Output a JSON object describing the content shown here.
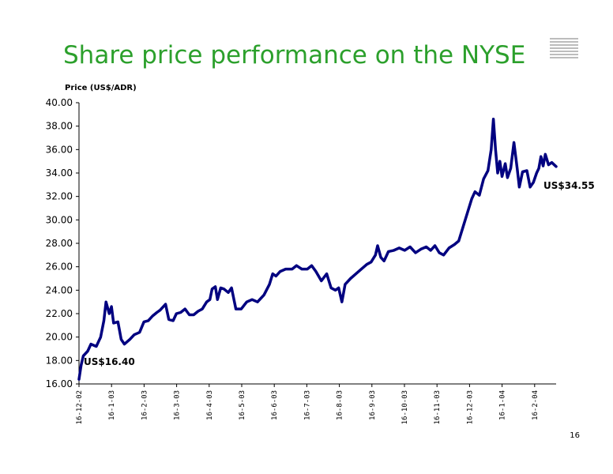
{
  "title": "Share price performance on the NYSE",
  "page_number": "16",
  "colors": {
    "title": "#2ca02c",
    "line": "#000080"
  },
  "chart_data": {
    "type": "line",
    "ylabel": "Price (US$/ADR)",
    "ylim": [
      16,
      40
    ],
    "y_ticks": [
      "16.00",
      "18.00",
      "20.00",
      "22.00",
      "24.00",
      "26.00",
      "28.00",
      "30.00",
      "32.00",
      "34.00",
      "36.00",
      "38.00",
      "40.00"
    ],
    "x_ticks": [
      "16-12-02",
      "16-1-03",
      "16-2-03",
      "16-3-03",
      "16-4-03",
      "16-5-03",
      "16-6-03",
      "16-7-03",
      "16-8-03",
      "16-9-03",
      "16-10-03",
      "16-11-03",
      "16-12-03",
      "16-1-04",
      "16-2-04"
    ],
    "x_range": [
      "2002-12-16",
      "2004-03-01"
    ],
    "grid": false,
    "annotations": [
      {
        "text": "US$16.40",
        "x": "2002-12-16",
        "y": 16.4
      },
      {
        "text": "US$34.55",
        "x": "2004-03-01",
        "y": 34.55
      }
    ],
    "series": [
      {
        "points": [
          [
            "2002-12-16",
            16.4
          ],
          [
            "2002-12-18",
            17.6
          ],
          [
            "2002-12-20",
            18.4
          ],
          [
            "2002-12-24",
            18.8
          ],
          [
            "2002-12-27",
            19.4
          ],
          [
            "2003-01-01",
            19.2
          ],
          [
            "2003-01-05",
            20.0
          ],
          [
            "2003-01-08",
            21.4
          ],
          [
            "2003-01-10",
            23.0
          ],
          [
            "2003-01-13",
            22.0
          ],
          [
            "2003-01-15",
            22.6
          ],
          [
            "2003-01-17",
            21.2
          ],
          [
            "2003-01-21",
            21.3
          ],
          [
            "2003-01-24",
            19.8
          ],
          [
            "2003-01-27",
            19.4
          ],
          [
            "2003-02-01",
            19.8
          ],
          [
            "2003-02-05",
            20.2
          ],
          [
            "2003-02-10",
            20.4
          ],
          [
            "2003-02-14",
            21.3
          ],
          [
            "2003-02-18",
            21.4
          ],
          [
            "2003-02-22",
            21.8
          ],
          [
            "2003-02-26",
            22.1
          ],
          [
            "2003-03-01",
            22.3
          ],
          [
            "2003-03-06",
            22.8
          ],
          [
            "2003-03-09",
            21.5
          ],
          [
            "2003-03-13",
            21.4
          ],
          [
            "2003-03-16",
            22.0
          ],
          [
            "2003-03-20",
            22.1
          ],
          [
            "2003-03-24",
            22.4
          ],
          [
            "2003-03-28",
            21.9
          ],
          [
            "2003-04-01",
            21.9
          ],
          [
            "2003-04-05",
            22.2
          ],
          [
            "2003-04-09",
            22.4
          ],
          [
            "2003-04-13",
            23.0
          ],
          [
            "2003-04-16",
            23.2
          ],
          [
            "2003-04-18",
            24.1
          ],
          [
            "2003-04-21",
            24.3
          ],
          [
            "2003-04-23",
            23.2
          ],
          [
            "2003-04-26",
            24.2
          ],
          [
            "2003-04-29",
            24.1
          ],
          [
            "2003-05-03",
            23.8
          ],
          [
            "2003-05-06",
            24.2
          ],
          [
            "2003-05-10",
            22.4
          ],
          [
            "2003-05-15",
            22.4
          ],
          [
            "2003-05-20",
            23.0
          ],
          [
            "2003-05-25",
            23.2
          ],
          [
            "2003-05-30",
            23.0
          ],
          [
            "2003-06-05",
            23.6
          ],
          [
            "2003-06-10",
            24.5
          ],
          [
            "2003-06-13",
            25.4
          ],
          [
            "2003-06-16",
            25.2
          ],
          [
            "2003-06-20",
            25.6
          ],
          [
            "2003-06-25",
            25.8
          ],
          [
            "2003-07-01",
            25.8
          ],
          [
            "2003-07-05",
            26.1
          ],
          [
            "2003-07-10",
            25.8
          ],
          [
            "2003-07-15",
            25.8
          ],
          [
            "2003-07-19",
            26.1
          ],
          [
            "2003-07-23",
            25.6
          ],
          [
            "2003-07-28",
            24.8
          ],
          [
            "2003-08-02",
            25.4
          ],
          [
            "2003-08-06",
            24.2
          ],
          [
            "2003-08-10",
            24.0
          ],
          [
            "2003-08-13",
            24.2
          ],
          [
            "2003-08-16",
            23.0
          ],
          [
            "2003-08-19",
            24.5
          ],
          [
            "2003-08-24",
            25.0
          ],
          [
            "2003-08-29",
            25.4
          ],
          [
            "2003-09-03",
            25.8
          ],
          [
            "2003-09-08",
            26.2
          ],
          [
            "2003-09-12",
            26.4
          ],
          [
            "2003-09-16",
            27.0
          ],
          [
            "2003-09-18",
            27.8
          ],
          [
            "2003-09-21",
            26.8
          ],
          [
            "2003-09-24",
            26.5
          ],
          [
            "2003-09-28",
            27.3
          ],
          [
            "2003-10-03",
            27.4
          ],
          [
            "2003-10-08",
            27.6
          ],
          [
            "2003-10-13",
            27.4
          ],
          [
            "2003-10-18",
            27.7
          ],
          [
            "2003-10-23",
            27.2
          ],
          [
            "2003-10-28",
            27.5
          ],
          [
            "2003-11-02",
            27.7
          ],
          [
            "2003-11-06",
            27.4
          ],
          [
            "2003-11-10",
            27.8
          ],
          [
            "2003-11-14",
            27.2
          ],
          [
            "2003-11-18",
            27.0
          ],
          [
            "2003-11-23",
            27.6
          ],
          [
            "2003-11-28",
            27.9
          ],
          [
            "2003-12-02",
            28.2
          ],
          [
            "2003-12-06",
            29.4
          ],
          [
            "2003-12-10",
            30.6
          ],
          [
            "2003-12-14",
            31.8
          ],
          [
            "2003-12-17",
            32.4
          ],
          [
            "2003-12-21",
            32.1
          ],
          [
            "2003-12-25",
            33.5
          ],
          [
            "2003-12-29",
            34.2
          ],
          [
            "2004-01-01",
            36.0
          ],
          [
            "2004-01-03",
            38.6
          ],
          [
            "2004-01-05",
            36.0
          ],
          [
            "2004-01-07",
            34.0
          ],
          [
            "2004-01-09",
            35.0
          ],
          [
            "2004-01-11",
            33.7
          ],
          [
            "2004-01-14",
            34.8
          ],
          [
            "2004-01-16",
            33.6
          ],
          [
            "2004-01-19",
            34.4
          ],
          [
            "2004-01-22",
            36.6
          ],
          [
            "2004-01-25",
            34.4
          ],
          [
            "2004-01-27",
            32.8
          ],
          [
            "2004-01-30",
            34.1
          ],
          [
            "2004-02-03",
            34.2
          ],
          [
            "2004-02-06",
            32.8
          ],
          [
            "2004-02-09",
            33.2
          ],
          [
            "2004-02-12",
            34.0
          ],
          [
            "2004-02-14",
            34.4
          ],
          [
            "2004-02-16",
            35.4
          ],
          [
            "2004-02-18",
            34.6
          ],
          [
            "2004-02-20",
            35.6
          ],
          [
            "2004-02-23",
            34.7
          ],
          [
            "2004-02-26",
            34.9
          ],
          [
            "2004-03-01",
            34.55
          ]
        ]
      }
    ]
  }
}
